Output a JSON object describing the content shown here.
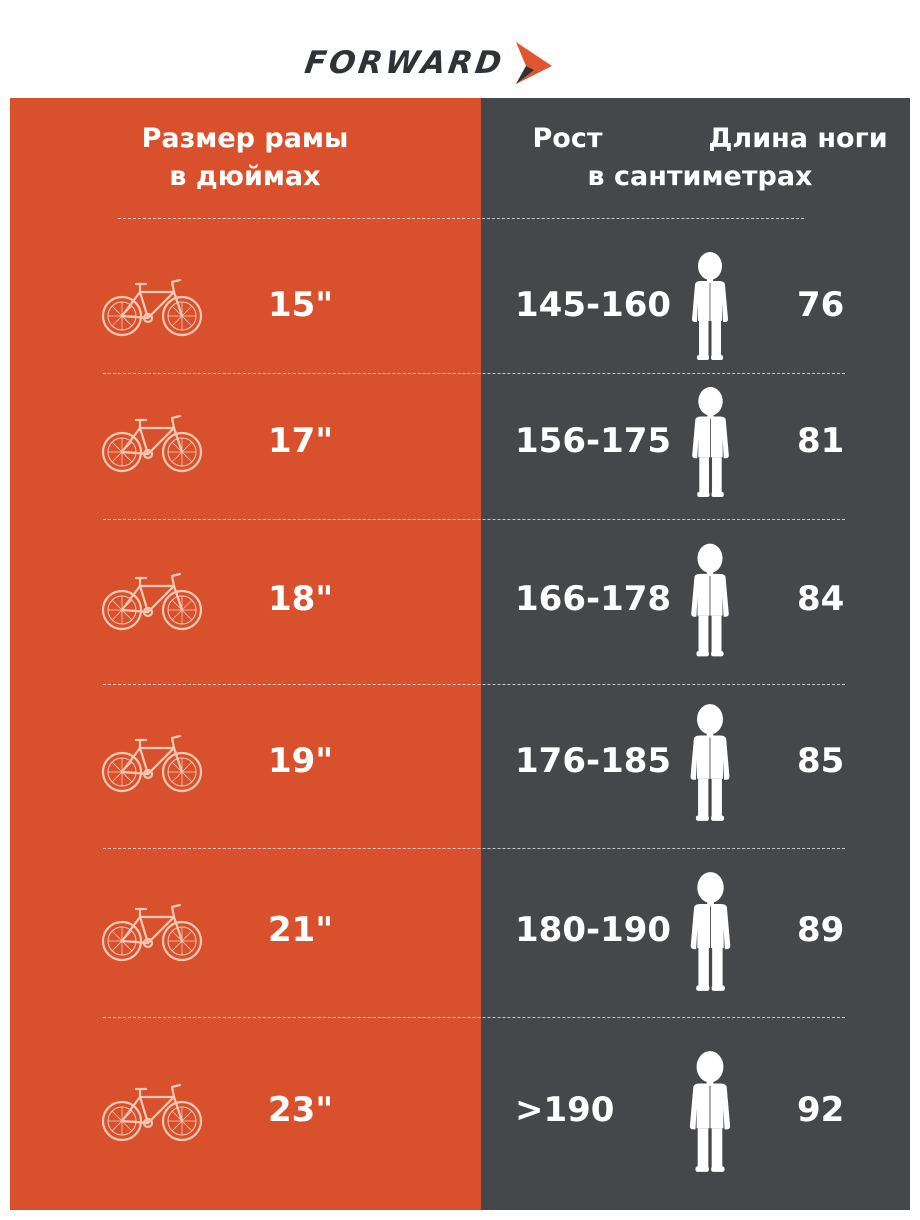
{
  "brand": {
    "logo_text": "FORWARD",
    "accent": "#d9512c",
    "dark": "#45474b"
  },
  "headers": {
    "frame_size": "Размер рамы\nв дюймах",
    "height": "Рост",
    "leg_length": "Длина ноги",
    "unit": "в сантиметрах"
  },
  "rows": [
    {
      "frame": "15\"",
      "height": "145-160",
      "leg": "76",
      "icons": {
        "bike": "bicycle-icon",
        "person": "person-icon"
      }
    },
    {
      "frame": "17\"",
      "height": "156-175",
      "leg": "81",
      "icons": {
        "bike": "bicycle-icon",
        "person": "person-icon"
      }
    },
    {
      "frame": "18\"",
      "height": "166-178",
      "leg": "84",
      "icons": {
        "bike": "bicycle-icon",
        "person": "person-icon"
      }
    },
    {
      "frame": "19\"",
      "height": "176-185",
      "leg": "85",
      "icons": {
        "bike": "bicycle-icon",
        "person": "person-icon"
      }
    },
    {
      "frame": "21\"",
      "height": "180-190",
      "leg": "89",
      "icons": {
        "bike": "bicycle-icon",
        "person": "person-icon"
      }
    },
    {
      "frame": "23\"",
      "height": ">190",
      "leg": "92",
      "icons": {
        "bike": "bicycle-icon",
        "person": "person-icon"
      }
    }
  ]
}
